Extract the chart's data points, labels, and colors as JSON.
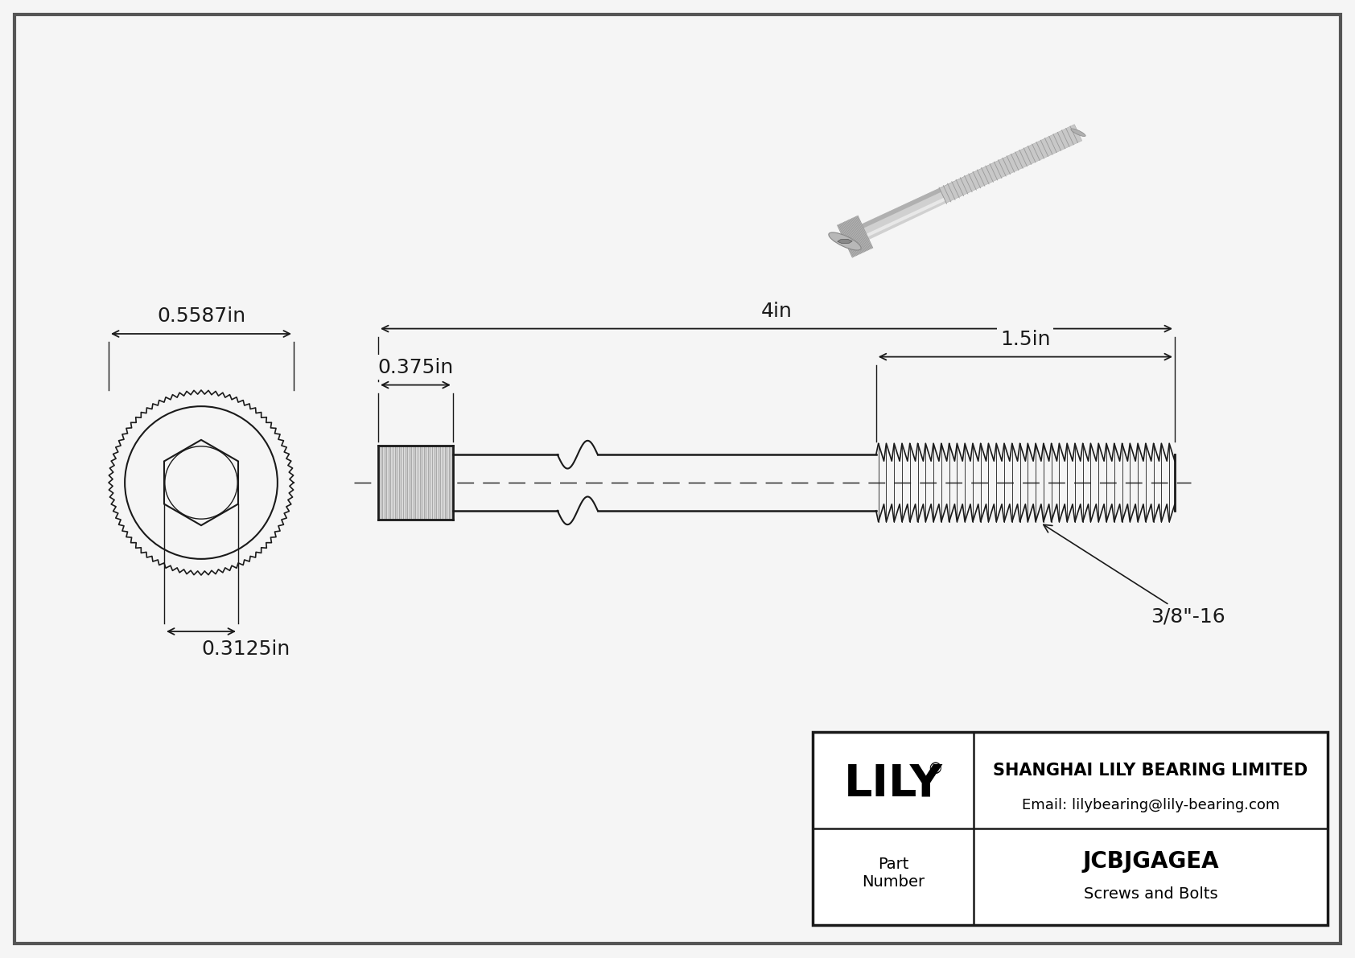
{
  "bg_color": "#e8e8e8",
  "drawing_bg": "#f5f5f5",
  "border_color": "#1a1a1a",
  "line_color": "#1a1a1a",
  "dim_color": "#1a1a1a",
  "title": "JCBJGAGEA",
  "subtitle": "Screws and Bolts",
  "company": "SHANGHAI LILY BEARING LIMITED",
  "email": "Email: lilybearing@lily-bearing.com",
  "logo": "LILY",
  "part_label": "Part\nNumber",
  "dim_head_width": "0.5587in",
  "dim_head_height": "0.375in",
  "dim_total_length": "4in",
  "dim_thread_length": "1.5in",
  "dim_hex_socket": "0.3125in",
  "thread_spec": "3/8\"-16"
}
